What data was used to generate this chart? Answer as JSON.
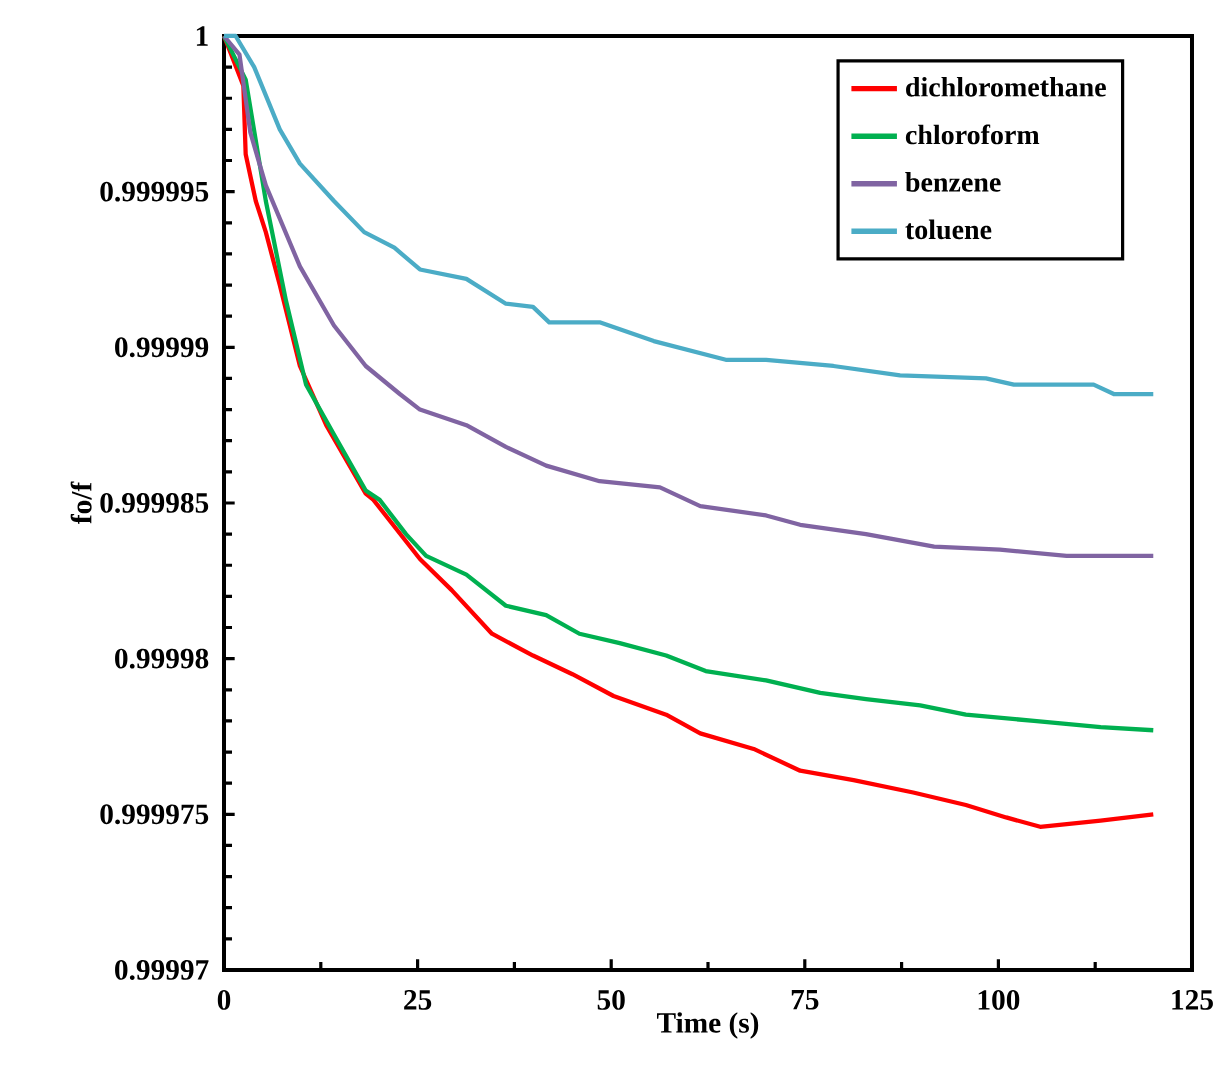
{
  "chart_data": {
    "type": "line",
    "xlabel": "Time (s)",
    "ylabel": "fo/f",
    "xlim": [
      0,
      125
    ],
    "xticks": [
      0,
      25,
      50,
      75,
      100,
      125
    ],
    "ylim": [
      0.99997,
      1
    ],
    "yticks": [
      0.99997,
      0.999975,
      0.99998,
      0.999985,
      0.99999,
      0.999995,
      1
    ],
    "legend": "top right",
    "series": [
      {
        "name": "dichloromethane",
        "color": "#ff0000",
        "x": [
          0,
          2.5,
          2.8,
          4.1,
          5.4,
          7.2,
          9.8,
          13.2,
          18.3,
          19.3,
          25.3,
          29.4,
          34.6,
          39.9,
          45,
          50.3,
          57.1,
          61.5,
          68.4,
          74.4,
          81.3,
          89,
          95.8,
          101,
          105.4,
          113.2,
          120
        ],
        "values": [
          1,
          0.9999984,
          0.9999962,
          0.9999947,
          0.9999937,
          0.999992,
          0.9999894,
          0.9999875,
          0.9999853,
          0.9999851,
          0.9999832,
          0.9999822,
          0.9999808,
          0.9999801,
          0.9999795,
          0.9999788,
          0.9999782,
          0.9999776,
          0.9999771,
          0.9999764,
          0.9999761,
          0.9999757,
          0.9999753,
          0.9999749,
          0.9999746,
          0.9999748,
          0.999975
        ]
      },
      {
        "name": "chloroform",
        "color": "#00b050",
        "x": [
          0,
          2.8,
          5.4,
          8,
          10.6,
          14.2,
          18.3,
          20.1,
          23.5,
          26.1,
          31.3,
          36.4,
          41.6,
          45.9,
          51.1,
          57.1,
          62.2,
          70,
          77,
          82.9,
          89.9,
          95.8,
          104.6,
          113.2,
          120
        ],
        "values": [
          1,
          0.9999986,
          0.9999947,
          0.9999915,
          0.9999888,
          0.9999872,
          0.9999854,
          0.9999851,
          0.999984,
          0.9999833,
          0.9999827,
          0.9999817,
          0.9999814,
          0.9999808,
          0.9999805,
          0.9999801,
          0.9999796,
          0.9999793,
          0.9999789,
          0.9999787,
          0.9999785,
          0.9999782,
          0.999978,
          0.9999778,
          0.9999777
        ]
      },
      {
        "name": "benzene",
        "color": "#8064a2",
        "x": [
          0,
          2,
          3.4,
          5.4,
          9.8,
          14.2,
          18.3,
          22.7,
          25.3,
          31.3,
          36.4,
          41.6,
          48.5,
          56.3,
          61.5,
          70,
          74.4,
          82.9,
          91.7,
          100.2,
          108.8,
          120
        ],
        "values": [
          1,
          0.9999994,
          0.9999969,
          0.9999952,
          0.9999926,
          0.9999907,
          0.9999894,
          0.9999885,
          0.999988,
          0.9999875,
          0.9999868,
          0.9999862,
          0.9999857,
          0.9999855,
          0.9999849,
          0.9999846,
          0.9999843,
          0.999984,
          0.9999836,
          0.9999835,
          0.9999833,
          0.9999833
        ]
      },
      {
        "name": "toluene",
        "color": "#4bacc6",
        "x": [
          0,
          1.5,
          3.9,
          7.2,
          9.8,
          14.2,
          18.1,
          22,
          25.3,
          31.3,
          36.4,
          39.9,
          42,
          48.6,
          55.5,
          64.8,
          70,
          78.7,
          87.3,
          98.4,
          102,
          112.3,
          114.9,
          120
        ],
        "values": [
          1,
          1,
          0.999999,
          0.999997,
          0.9999959,
          0.9999947,
          0.9999937,
          0.9999932,
          0.9999925,
          0.9999922,
          0.9999914,
          0.9999913,
          0.9999908,
          0.9999908,
          0.9999902,
          0.9999896,
          0.9999896,
          0.9999894,
          0.9999891,
          0.999989,
          0.9999888,
          0.9999888,
          0.9999885,
          0.9999885
        ]
      }
    ]
  }
}
